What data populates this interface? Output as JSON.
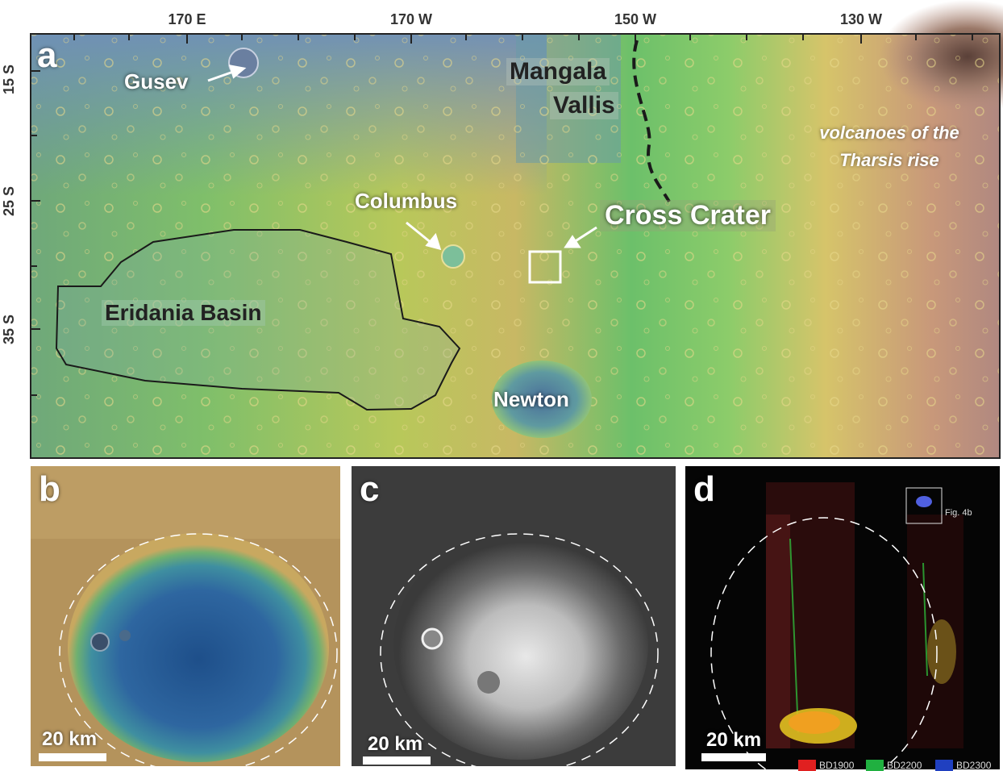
{
  "panel_a": {
    "letter": "a",
    "lon_ticks": [
      "170 E",
      "170 W",
      "150 W",
      "130 W"
    ],
    "lat_ticks": [
      "15 S",
      "25 S",
      "35 S"
    ],
    "labels": {
      "gusev": "Gusev",
      "mangala_line1": "Mangala",
      "mangala_line2": "Vallis",
      "volcanoes_line1": "volcanoes of the",
      "volcanoes_line2": "Tharsis rise",
      "columbus": "Columbus",
      "cross_crater": "Cross Crater",
      "eridania": "Eridania Basin",
      "newton": "Newton"
    }
  },
  "panel_b": {
    "letter": "b",
    "scale": "20 km"
  },
  "panel_c": {
    "letter": "c",
    "scale": "20 km"
  },
  "panel_d": {
    "letter": "d",
    "scale": "20 km",
    "inset_label": "Fig. 4b",
    "legend": [
      {
        "label": "BD1900",
        "color": "#e02020"
      },
      {
        "label": "BD2200",
        "color": "#20b040"
      },
      {
        "label": "BD2300",
        "color": "#2040c0"
      }
    ]
  }
}
